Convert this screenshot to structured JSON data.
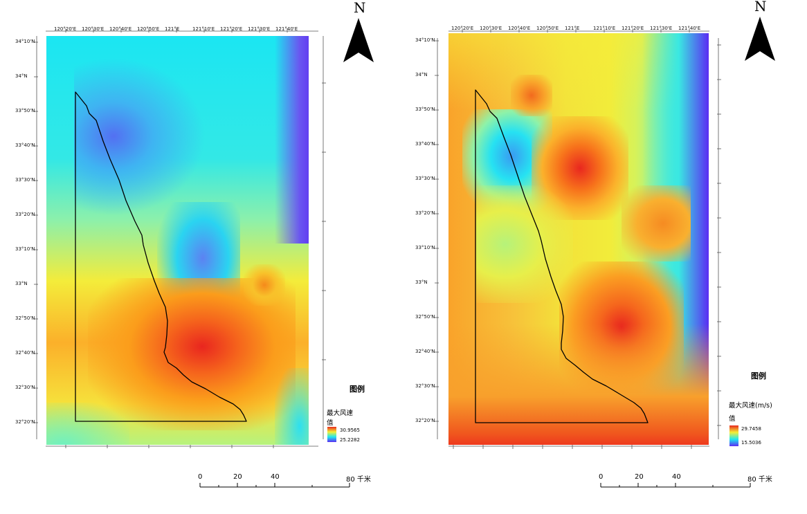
{
  "north_symbol": "N",
  "colors": {
    "high": "#e8281e",
    "mid_high": "#fb9a17",
    "mid": "#f6ef35",
    "mid_low": "#74f0b6",
    "low": "#12e8f2",
    "very_low": "#5b2cf3",
    "coastline": "#000000"
  },
  "maps": [
    {
      "id": "left",
      "top_ticks": [
        "120°20'E",
        "120°30'E",
        "120°40'E",
        "120°50'E",
        "121°E",
        "121°10'E",
        "121°20'E",
        "121°30'E",
        "121°40'E"
      ],
      "left_ticks": [
        "34°10'N",
        "34°N",
        "33°50'N",
        "33°40'N",
        "33°30'N",
        "33°20'N",
        "33°10'N",
        "33°N",
        "32°50'N",
        "32°40'N",
        "32°30'N",
        "32°20'N"
      ],
      "legend": {
        "title": "图例",
        "field_name": "最大风速",
        "value_label": "值",
        "max_value": "30.9565",
        "min_value": "25.2282"
      },
      "scale": {
        "labels": [
          "0",
          "20",
          "40",
          "80 千米"
        ]
      }
    },
    {
      "id": "right",
      "top_ticks": [
        "120°20'E",
        "120°30'E",
        "120°40'E",
        "120°50'E",
        "121°E",
        "121°10'E",
        "121°20'E",
        "121°30'E",
        "121°40'E"
      ],
      "left_ticks": [
        "34°10'N",
        "34°N",
        "33°50'N",
        "33°40'N",
        "33°30'N",
        "33°20'N",
        "33°10'N",
        "33°N",
        "32°50'N",
        "32°40'N",
        "32°30'N",
        "32°20'N"
      ],
      "legend": {
        "title": "图例",
        "field_name": "最大风速(m/s)",
        "value_label": "值",
        "max_value": "29.7458",
        "min_value": "15.5036"
      },
      "scale": {
        "labels": [
          "0",
          "20",
          "40",
          "80 千米"
        ]
      }
    }
  ]
}
